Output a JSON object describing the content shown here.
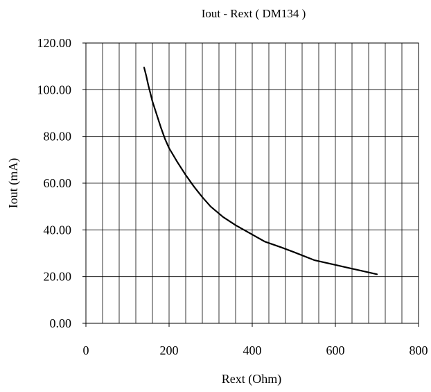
{
  "chart_data": {
    "type": "line",
    "title": "Iout - Rext ( DM134 )",
    "xlabel": "Rext (Ohm)",
    "ylabel": "Iout (mA)",
    "xlim": [
      0,
      800
    ],
    "ylim": [
      0,
      120
    ],
    "x_ticks": [
      0,
      200,
      400,
      600,
      800
    ],
    "x_tick_labels": [
      "0",
      "200",
      "400",
      "600",
      "800"
    ],
    "y_ticks": [
      0,
      20,
      40,
      60,
      80,
      100,
      120
    ],
    "y_tick_labels": [
      "0.00",
      "20.00",
      "40.00",
      "60.00",
      "80.00",
      "100.00",
      "120.00"
    ],
    "x_minor_step": 40,
    "y_minor_step": 20,
    "grid": true,
    "legend": "none",
    "line_color": "#000000",
    "series": [
      {
        "x": [
          140,
          145,
          150,
          160,
          170,
          180,
          190,
          200,
          220,
          240,
          260,
          280,
          300,
          330,
          360,
          400,
          430,
          470,
          500,
          550,
          600,
          650,
          700
        ],
        "y": [
          109.5,
          106,
          102,
          95,
          89.5,
          84,
          79,
          75,
          69,
          63.5,
          58.5,
          54,
          50,
          45.5,
          42,
          38,
          35,
          32.5,
          30.5,
          27,
          25,
          23,
          21
        ]
      }
    ]
  }
}
